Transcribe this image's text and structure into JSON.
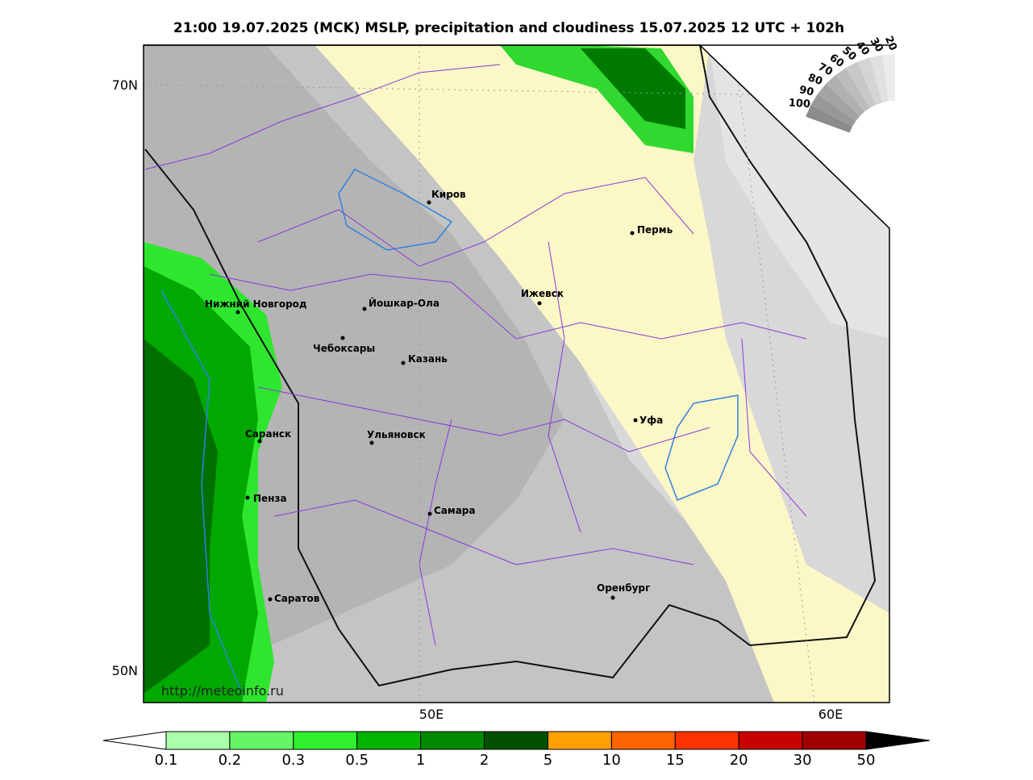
{
  "title": "21:00 19.07.2025 (MCK) MSLP, precipitation and cloudiness 15.07.2025 12 UTC + 102h",
  "map": {
    "lat_labels": [
      "70N",
      "50N"
    ],
    "lon_labels": [
      "50E",
      "60E"
    ],
    "cities": [
      "Киров",
      "Пермь",
      "Ижевск",
      "Нижний Новгород",
      "Йошкар-Ола",
      "Чебоксары",
      "Казань",
      "Уфа",
      "Саранск",
      "Ульяновск",
      "Пенза",
      "Самара",
      "Оренбург",
      "Саратов"
    ],
    "url": "http://meteoinfo.ru"
  },
  "colorbar": {
    "labels": [
      0.1,
      0.2,
      0.3,
      0.5,
      1,
      2,
      5,
      10,
      15,
      20,
      30,
      50
    ],
    "colors": [
      "#aaffaa",
      "#66f566",
      "#2ef02e",
      "#00b400",
      "#008a00",
      "#005000",
      "#ffa000",
      "#ff6400",
      "#ff3200",
      "#c80000",
      "#a00000"
    ]
  },
  "cloud_scale": {
    "labels": [
      100,
      90,
      80,
      70,
      60,
      50,
      40,
      30,
      20
    ]
  }
}
